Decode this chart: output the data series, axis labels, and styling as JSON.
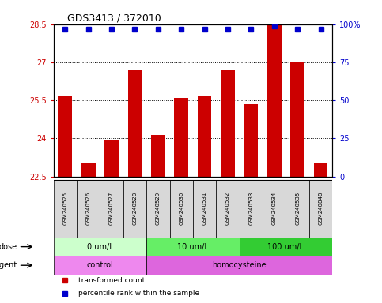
{
  "title": "GDS3413 / 372010",
  "samples": [
    "GSM240525",
    "GSM240526",
    "GSM240527",
    "GSM240528",
    "GSM240529",
    "GSM240530",
    "GSM240531",
    "GSM240532",
    "GSM240533",
    "GSM240534",
    "GSM240535",
    "GSM240848"
  ],
  "transformed_counts": [
    25.65,
    23.05,
    23.95,
    26.7,
    24.15,
    25.6,
    25.65,
    26.7,
    25.35,
    28.5,
    27.0,
    23.05
  ],
  "percentile_values": [
    97,
    97,
    97,
    97,
    97,
    97,
    97,
    97,
    97,
    99,
    97,
    97
  ],
  "ylim_left": [
    22.5,
    28.5
  ],
  "ylim_right": [
    0,
    100
  ],
  "yticks_left": [
    22.5,
    24.0,
    25.5,
    27.0,
    28.5
  ],
  "ytick_labels_left": [
    "22.5",
    "24",
    "25.5",
    "27",
    "28.5"
  ],
  "yticks_right": [
    0,
    25,
    50,
    75,
    100
  ],
  "ytick_labels_right": [
    "0",
    "25",
    "50",
    "75",
    "100%"
  ],
  "bar_color": "#cc0000",
  "dot_color": "#0000cc",
  "dose_groups": [
    {
      "label": "0 um/L",
      "start": 0,
      "end": 4,
      "color": "#ccffcc"
    },
    {
      "label": "10 um/L",
      "start": 4,
      "end": 8,
      "color": "#66ee66"
    },
    {
      "label": "100 um/L",
      "start": 8,
      "end": 12,
      "color": "#33cc33"
    }
  ],
  "agent_groups": [
    {
      "label": "control",
      "start": 0,
      "end": 4,
      "color": "#ee88ee"
    },
    {
      "label": "homocysteine",
      "start": 4,
      "end": 12,
      "color": "#dd66dd"
    }
  ],
  "legend_items": [
    {
      "label": "transformed count",
      "color": "#cc0000"
    },
    {
      "label": "percentile rank within the sample",
      "color": "#0000cc"
    }
  ],
  "dose_label": "dose",
  "agent_label": "agent",
  "background_color": "#ffffff",
  "plot_bg_color": "#ffffff",
  "tick_bg_color": "#d8d8d8",
  "bar_bottom": 22.5,
  "bar_width": 0.6
}
